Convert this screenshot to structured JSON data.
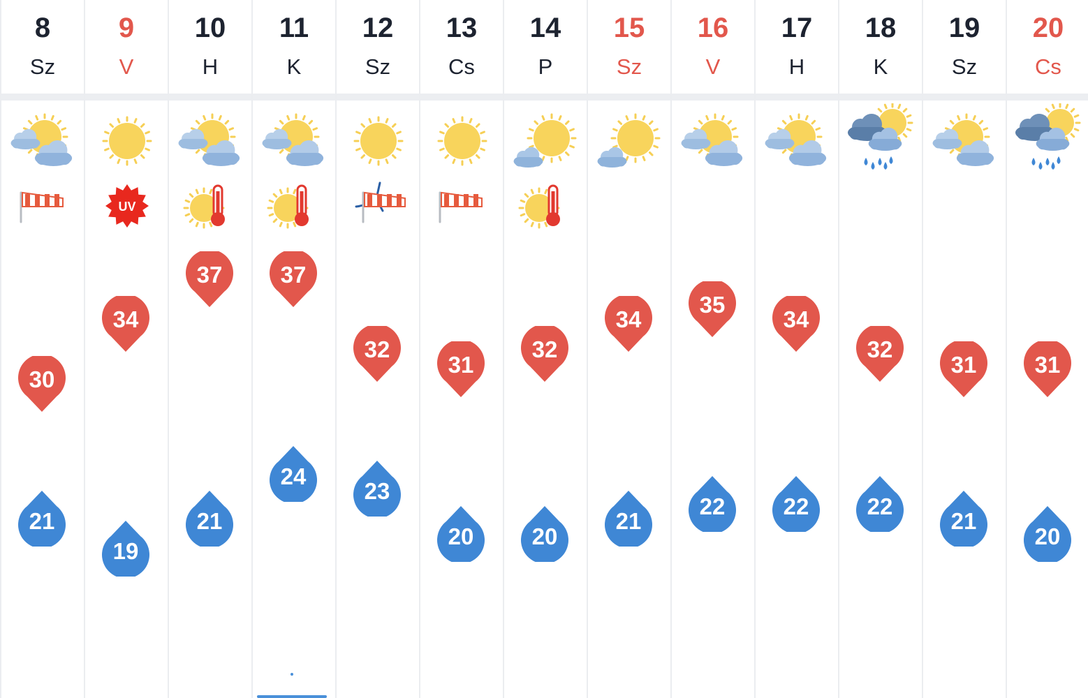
{
  "colors": {
    "weekend": "#e2574c",
    "weekday": "#1d2330",
    "max_badge": "#e2574c",
    "min_badge": "#3f87d5"
  },
  "days": [
    {
      "num": "8",
      "abbr": "Sz",
      "weekend": false,
      "icon": "partly-cloudy-icon",
      "alert": "wind-sock-icon",
      "max": 30,
      "min": 21
    },
    {
      "num": "9",
      "abbr": "V",
      "weekend": true,
      "icon": "sunny-icon",
      "alert": "uv-warning-icon",
      "max": 34,
      "min": 19
    },
    {
      "num": "10",
      "abbr": "H",
      "weekend": false,
      "icon": "partly-cloudy-icon",
      "alert": "heat-warning-icon",
      "max": 37,
      "min": 21
    },
    {
      "num": "11",
      "abbr": "K",
      "weekend": false,
      "icon": "partly-cloudy-icon",
      "alert": "heat-warning-icon",
      "max": 37,
      "min": 24
    },
    {
      "num": "12",
      "abbr": "Sz",
      "weekend": false,
      "icon": "sunny-icon",
      "alert": "wind-storm-icon",
      "max": 32,
      "min": 23
    },
    {
      "num": "13",
      "abbr": "Cs",
      "weekend": false,
      "icon": "sunny-icon",
      "alert": "wind-sock-icon",
      "max": 31,
      "min": 20
    },
    {
      "num": "14",
      "abbr": "P",
      "weekend": false,
      "icon": "mostly-sunny-icon",
      "alert": "heat-warning-icon",
      "max": 32,
      "min": 20
    },
    {
      "num": "15",
      "abbr": "Sz",
      "weekend": true,
      "icon": "mostly-sunny-icon",
      "alert": "",
      "max": 34,
      "min": 21
    },
    {
      "num": "16",
      "abbr": "V",
      "weekend": true,
      "icon": "partly-cloudy-icon",
      "alert": "",
      "max": 35,
      "min": 22
    },
    {
      "num": "17",
      "abbr": "H",
      "weekend": false,
      "icon": "partly-cloudy-icon",
      "alert": "",
      "max": 34,
      "min": 22
    },
    {
      "num": "18",
      "abbr": "K",
      "weekend": false,
      "icon": "rain-shower-icon",
      "alert": "",
      "max": 32,
      "min": 22
    },
    {
      "num": "19",
      "abbr": "Sz",
      "weekend": false,
      "icon": "partly-cloudy-icon",
      "alert": "",
      "max": 31,
      "min": 21
    },
    {
      "num": "20",
      "abbr": "Cs",
      "weekend": true,
      "icon": "rain-shower-icon",
      "alert": "",
      "max": 31,
      "min": 20
    }
  ]
}
